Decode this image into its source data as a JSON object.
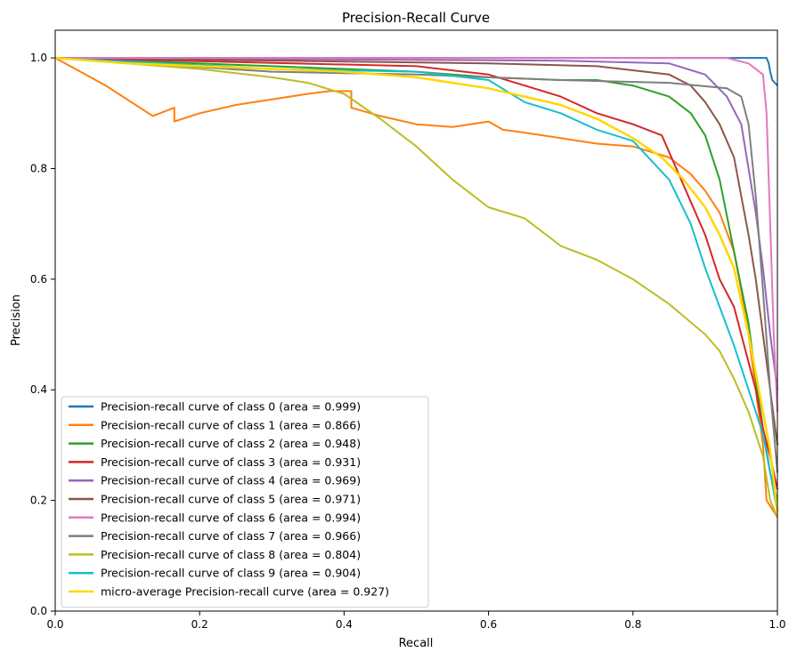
{
  "chart_data": {
    "type": "line",
    "title": "Precision-Recall Curve",
    "xlabel": "Recall",
    "ylabel": "Precision",
    "xlim": [
      0.0,
      1.0
    ],
    "ylim": [
      0.0,
      1.05
    ],
    "xticks": [
      0.0,
      0.2,
      0.4,
      0.6,
      0.8,
      1.0
    ],
    "xtick_labels": [
      "0.0",
      "0.2",
      "0.4",
      "0.6",
      "0.8",
      "1.0"
    ],
    "yticks": [
      0.0,
      0.2,
      0.4,
      0.6,
      0.8,
      1.0
    ],
    "ytick_labels": [
      "0.0",
      "0.2",
      "0.4",
      "0.6",
      "0.8",
      "1.0"
    ],
    "grid": false,
    "legend_position": "lower-left",
    "series": [
      {
        "name": "Precision-recall curve of class 0 (area = 0.999)",
        "color": "#1f77b4",
        "points": [
          [
            0,
            1.0
          ],
          [
            0.95,
            1.0
          ],
          [
            0.985,
            1.0
          ],
          [
            0.988,
            0.99
          ],
          [
            0.99,
            0.975
          ],
          [
            0.993,
            0.96
          ],
          [
            1.0,
            0.95
          ]
        ]
      },
      {
        "name": "Precision-recall curve of class 1 (area = 0.866)",
        "color": "#ff7f0e",
        "points": [
          [
            0,
            1.0
          ],
          [
            0.07,
            0.95
          ],
          [
            0.135,
            0.895
          ],
          [
            0.165,
            0.91
          ],
          [
            0.165,
            0.885
          ],
          [
            0.2,
            0.9
          ],
          [
            0.25,
            0.915
          ],
          [
            0.3,
            0.925
          ],
          [
            0.35,
            0.935
          ],
          [
            0.38,
            0.94
          ],
          [
            0.41,
            0.94
          ],
          [
            0.41,
            0.91
          ],
          [
            0.45,
            0.895
          ],
          [
            0.5,
            0.88
          ],
          [
            0.55,
            0.875
          ],
          [
            0.6,
            0.885
          ],
          [
            0.62,
            0.87
          ],
          [
            0.65,
            0.865
          ],
          [
            0.7,
            0.855
          ],
          [
            0.75,
            0.845
          ],
          [
            0.8,
            0.84
          ],
          [
            0.85,
            0.82
          ],
          [
            0.88,
            0.79
          ],
          [
            0.9,
            0.76
          ],
          [
            0.92,
            0.72
          ],
          [
            0.94,
            0.65
          ],
          [
            0.95,
            0.58
          ],
          [
            0.96,
            0.5
          ],
          [
            0.97,
            0.4
          ],
          [
            0.98,
            0.3
          ],
          [
            0.985,
            0.2
          ],
          [
            1.0,
            0.17
          ]
        ]
      },
      {
        "name": "Precision-recall curve of class 2 (area = 0.948)",
        "color": "#2ca02c",
        "points": [
          [
            0,
            1.0
          ],
          [
            0.3,
            0.985
          ],
          [
            0.5,
            0.975
          ],
          [
            0.6,
            0.965
          ],
          [
            0.7,
            0.96
          ],
          [
            0.75,
            0.96
          ],
          [
            0.8,
            0.95
          ],
          [
            0.85,
            0.93
          ],
          [
            0.88,
            0.9
          ],
          [
            0.9,
            0.86
          ],
          [
            0.92,
            0.78
          ],
          [
            0.94,
            0.65
          ],
          [
            0.96,
            0.52
          ],
          [
            0.97,
            0.42
          ],
          [
            0.98,
            0.33
          ],
          [
            0.99,
            0.25
          ],
          [
            1.0,
            0.2
          ]
        ]
      },
      {
        "name": "Precision-recall curve of class 3 (area = 0.931)",
        "color": "#d62728",
        "points": [
          [
            0,
            1.0
          ],
          [
            0.5,
            0.985
          ],
          [
            0.6,
            0.97
          ],
          [
            0.7,
            0.93
          ],
          [
            0.75,
            0.9
          ],
          [
            0.8,
            0.88
          ],
          [
            0.84,
            0.86
          ],
          [
            0.86,
            0.8
          ],
          [
            0.88,
            0.74
          ],
          [
            0.9,
            0.68
          ],
          [
            0.92,
            0.6
          ],
          [
            0.94,
            0.55
          ],
          [
            0.95,
            0.5
          ],
          [
            0.96,
            0.45
          ],
          [
            0.97,
            0.4
          ],
          [
            0.98,
            0.33
          ],
          [
            0.99,
            0.28
          ],
          [
            1.0,
            0.22
          ]
        ]
      },
      {
        "name": "Precision-recall curve of class 4 (area = 0.969)",
        "color": "#9467bd",
        "points": [
          [
            0,
            1.0
          ],
          [
            0.7,
            0.995
          ],
          [
            0.85,
            0.99
          ],
          [
            0.9,
            0.97
          ],
          [
            0.93,
            0.93
          ],
          [
            0.95,
            0.88
          ],
          [
            0.96,
            0.8
          ],
          [
            0.97,
            0.72
          ],
          [
            0.98,
            0.62
          ],
          [
            0.99,
            0.5
          ],
          [
            1.0,
            0.4
          ]
        ]
      },
      {
        "name": "Precision-recall curve of class 5 (area = 0.971)",
        "color": "#8c564b",
        "points": [
          [
            0,
            1.0
          ],
          [
            0.6,
            0.99
          ],
          [
            0.75,
            0.985
          ],
          [
            0.85,
            0.97
          ],
          [
            0.88,
            0.95
          ],
          [
            0.9,
            0.92
          ],
          [
            0.92,
            0.88
          ],
          [
            0.94,
            0.82
          ],
          [
            0.95,
            0.75
          ],
          [
            0.96,
            0.68
          ],
          [
            0.97,
            0.6
          ],
          [
            0.98,
            0.5
          ],
          [
            0.99,
            0.4
          ],
          [
            1.0,
            0.3
          ]
        ]
      },
      {
        "name": "Precision-recall curve of class 6 (area = 0.994)",
        "color": "#e377c2",
        "points": [
          [
            0,
            1.0
          ],
          [
            0.93,
            1.0
          ],
          [
            0.96,
            0.99
          ],
          [
            0.98,
            0.97
          ],
          [
            0.985,
            0.9
          ],
          [
            0.99,
            0.7
          ],
          [
            0.995,
            0.5
          ],
          [
            1.0,
            0.36
          ]
        ]
      },
      {
        "name": "Precision-recall curve of class 7 (area = 0.966)",
        "color": "#7f7f7f",
        "points": [
          [
            0,
            1.0
          ],
          [
            0.3,
            0.975
          ],
          [
            0.5,
            0.97
          ],
          [
            0.7,
            0.96
          ],
          [
            0.85,
            0.955
          ],
          [
            0.93,
            0.945
          ],
          [
            0.95,
            0.93
          ],
          [
            0.96,
            0.88
          ],
          [
            0.97,
            0.75
          ],
          [
            0.98,
            0.58
          ],
          [
            0.99,
            0.4
          ],
          [
            1.0,
            0.25
          ]
        ]
      },
      {
        "name": "Precision-recall curve of class 8 (area = 0.804)",
        "color": "#bcbd22",
        "points": [
          [
            0,
            1.0
          ],
          [
            0.2,
            0.98
          ],
          [
            0.3,
            0.965
          ],
          [
            0.35,
            0.955
          ],
          [
            0.4,
            0.935
          ],
          [
            0.45,
            0.89
          ],
          [
            0.5,
            0.84
          ],
          [
            0.55,
            0.78
          ],
          [
            0.6,
            0.73
          ],
          [
            0.65,
            0.71
          ],
          [
            0.7,
            0.66
          ],
          [
            0.75,
            0.635
          ],
          [
            0.8,
            0.6
          ],
          [
            0.85,
            0.555
          ],
          [
            0.9,
            0.5
          ],
          [
            0.92,
            0.47
          ],
          [
            0.94,
            0.42
          ],
          [
            0.96,
            0.36
          ],
          [
            0.98,
            0.28
          ],
          [
            0.99,
            0.2
          ],
          [
            1.0,
            0.17
          ]
        ]
      },
      {
        "name": "Precision-recall curve of class 9 (area = 0.904)",
        "color": "#17becf",
        "points": [
          [
            0,
            1.0
          ],
          [
            0.3,
            0.98
          ],
          [
            0.5,
            0.975
          ],
          [
            0.6,
            0.96
          ],
          [
            0.65,
            0.92
          ],
          [
            0.7,
            0.9
          ],
          [
            0.75,
            0.87
          ],
          [
            0.8,
            0.85
          ],
          [
            0.85,
            0.78
          ],
          [
            0.88,
            0.7
          ],
          [
            0.9,
            0.62
          ],
          [
            0.92,
            0.55
          ],
          [
            0.94,
            0.48
          ],
          [
            0.96,
            0.4
          ],
          [
            0.98,
            0.32
          ],
          [
            0.99,
            0.25
          ],
          [
            1.0,
            0.18
          ]
        ]
      },
      {
        "name": "micro-average Precision-recall curve (area = 0.927)",
        "color": "#ffd700",
        "points": [
          [
            0,
            1.0
          ],
          [
            0.1,
            0.99
          ],
          [
            0.2,
            0.985
          ],
          [
            0.3,
            0.98
          ],
          [
            0.4,
            0.975
          ],
          [
            0.5,
            0.965
          ],
          [
            0.55,
            0.955
          ],
          [
            0.6,
            0.945
          ],
          [
            0.65,
            0.93
          ],
          [
            0.7,
            0.915
          ],
          [
            0.75,
            0.89
          ],
          [
            0.8,
            0.855
          ],
          [
            0.84,
            0.82
          ],
          [
            0.87,
            0.78
          ],
          [
            0.9,
            0.73
          ],
          [
            0.92,
            0.68
          ],
          [
            0.94,
            0.62
          ],
          [
            0.95,
            0.56
          ],
          [
            0.96,
            0.5
          ],
          [
            0.97,
            0.43
          ],
          [
            0.98,
            0.36
          ],
          [
            0.99,
            0.29
          ],
          [
            1.0,
            0.18
          ]
        ]
      }
    ]
  }
}
